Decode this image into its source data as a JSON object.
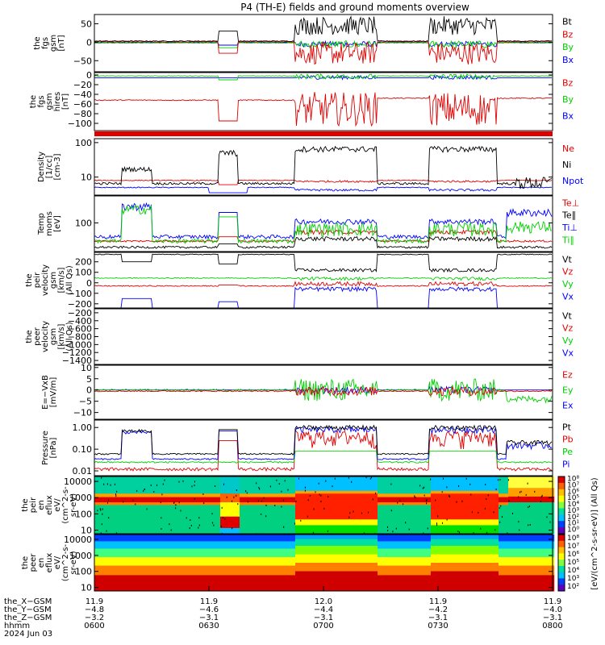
{
  "title": "P4 (TH-E) fields and ground moments overview",
  "colors": {
    "black": "#000000",
    "red": "#e00000",
    "green": "#00d000",
    "blue": "#0000ff"
  },
  "panels": [
    {
      "id": "p1",
      "ylabel": [
        "the",
        "fgs",
        "gsm",
        "[nT]"
      ],
      "ticks": [
        {
          "v": 50,
          "l": "50"
        },
        {
          "v": 0,
          "l": "0"
        },
        {
          "v": -50,
          "l": "−50"
        }
      ],
      "ymin": -80,
      "ymax": 75,
      "log": false,
      "legend": [
        {
          "text": "Bt",
          "color": "black"
        },
        {
          "text": "Bz",
          "color": "red"
        },
        {
          "text": "By",
          "color": "green"
        },
        {
          "text": "Bx",
          "color": "blue"
        }
      ]
    },
    {
      "id": "p2",
      "ylabel": [
        "the",
        "fgs",
        "gsm",
        "hires",
        "[nT]"
      ],
      "ticks": [
        {
          "v": 0,
          "l": "0"
        },
        {
          "v": -20,
          "l": "−20"
        },
        {
          "v": -40,
          "l": "−40"
        },
        {
          "v": -60,
          "l": "−60"
        },
        {
          "v": -80,
          "l": "−80"
        },
        {
          "v": -100,
          "l": "−100"
        }
      ],
      "ymin": -115,
      "ymax": 5,
      "log": false,
      "legend": [
        {
          "text": "Bz",
          "color": "red"
        },
        {
          "text": "By",
          "color": "green"
        },
        {
          "text": "Bx",
          "color": "blue"
        }
      ]
    },
    {
      "id": "p3",
      "ylabel": [
        "Density",
        "[1/cc]",
        "[cm-3]"
      ],
      "ticks": [
        {
          "v": 100,
          "l": "100"
        },
        {
          "v": 10,
          "l": "10"
        }
      ],
      "ymin": 3,
      "ymax": 130,
      "log": true,
      "legend": [
        {
          "text": "Ne",
          "color": "red"
        },
        {
          "text": "Ni",
          "color": "black"
        },
        {
          "text": "Npot",
          "color": "blue"
        }
      ]
    },
    {
      "id": "p4",
      "ylabel": [
        "Temp",
        "moms",
        "[eV]"
      ],
      "ticks": [
        {
          "v": 100,
          "l": "100"
        }
      ],
      "ymin": 15,
      "ymax": 600,
      "log": true,
      "legend": [
        {
          "text": "Te⊥",
          "color": "red"
        },
        {
          "text": "Te∥",
          "color": "black"
        },
        {
          "text": "Ti⊥",
          "color": "blue"
        },
        {
          "text": "Ti∥",
          "color": "green"
        }
      ]
    },
    {
      "id": "p5",
      "ylabel": [
        "the",
        "peir",
        "velocity",
        "gsm",
        "[km/s]",
        "(All Qs)"
      ],
      "ticks": [
        {
          "v": 200,
          "l": "200"
        },
        {
          "v": 100,
          "l": "100"
        },
        {
          "v": 0,
          "l": "0"
        },
        {
          "v": -100,
          "l": "−100"
        },
        {
          "v": -200,
          "l": "−200"
        }
      ],
      "ymin": -240,
      "ymax": 290,
      "log": false,
      "legend": [
        {
          "text": "Vt",
          "color": "black"
        },
        {
          "text": "Vz",
          "color": "red"
        },
        {
          "text": "Vy",
          "color": "green"
        },
        {
          "text": "Vx",
          "color": "blue"
        }
      ]
    },
    {
      "id": "p6",
      "ylabel": [
        "the",
        "peer",
        "velocity",
        "gsm",
        "[km/s]",
        "(All Qs)"
      ],
      "ticks": [
        {
          "v": -200,
          "l": "−200"
        },
        {
          "v": -400,
          "l": "−400"
        },
        {
          "v": -600,
          "l": "−600"
        },
        {
          "v": -800,
          "l": "−800"
        },
        {
          "v": -1000,
          "l": "−1000"
        },
        {
          "v": -1200,
          "l": "−1200"
        },
        {
          "v": -1400,
          "l": "−1400"
        }
      ],
      "ymin": -1500,
      "ymax": -100,
      "log": false,
      "legend": [
        {
          "text": "Vt",
          "color": "black"
        },
        {
          "text": "Vz",
          "color": "red"
        },
        {
          "text": "Vy",
          "color": "green"
        },
        {
          "text": "Vx",
          "color": "blue"
        }
      ]
    },
    {
      "id": "p7",
      "ylabel": [
        "E=−VxB",
        "[mV/m]"
      ],
      "ticks": [
        {
          "v": 10,
          "l": "10"
        },
        {
          "v": 5,
          "l": "5"
        },
        {
          "v": 0,
          "l": "0"
        },
        {
          "v": -5,
          "l": "−5"
        },
        {
          "v": -10,
          "l": "−10"
        }
      ],
      "ymin": -13,
      "ymax": 11,
      "log": false,
      "legend": [
        {
          "text": "Ez",
          "color": "red"
        },
        {
          "text": "Ey",
          "color": "green"
        },
        {
          "text": "Ex",
          "color": "blue"
        }
      ]
    },
    {
      "id": "p8",
      "ylabel": [
        "Pressure",
        "[nPa]"
      ],
      "ticks": [
        {
          "v": 1,
          "l": "1.00"
        },
        {
          "v": 0.1,
          "l": "0.10"
        },
        {
          "v": 0.01,
          "l": "0.01"
        }
      ],
      "ymin": 0.006,
      "ymax": 2.2,
      "log": true,
      "legend": [
        {
          "text": "Pt",
          "color": "black"
        },
        {
          "text": "Pb",
          "color": "red"
        },
        {
          "text": "Pe",
          "color": "green"
        },
        {
          "text": "Pi",
          "color": "blue"
        }
      ]
    },
    {
      "id": "p9",
      "ylabel": [
        "the",
        "peir",
        "en",
        "eflux",
        "eV/",
        "(cm^2-s-",
        "sr-eV)"
      ],
      "ticks": [
        {
          "v": 10000,
          "l": "10000"
        },
        {
          "v": 1000,
          "l": "1000"
        },
        {
          "v": 100,
          "l": "100"
        },
        {
          "v": 10,
          "l": "10"
        }
      ],
      "ymin": 6,
      "ymax": 20000,
      "log": true,
      "legend": []
    },
    {
      "id": "p10",
      "ylabel": [
        "the",
        "peer",
        "en",
        "eflux",
        "eV/",
        "(cm^2-s-",
        "sr-eV)"
      ],
      "ticks": [
        {
          "v": 10000,
          "l": "10000"
        },
        {
          "v": 1000,
          "l": "1000"
        },
        {
          "v": 100,
          "l": "100"
        },
        {
          "v": 10,
          "l": "10"
        }
      ],
      "ymin": 6,
      "ymax": 20000,
      "log": true,
      "legend": []
    }
  ],
  "colorbar": {
    "label": "[eV/(cm^2-s-sr-eV)] (All Qs)",
    "upper": [
      "10⁸",
      "10⁷",
      "10⁶",
      "10⁵",
      "10⁴",
      "10³",
      "10²",
      "10¹",
      "10⁰"
    ],
    "lower": [
      "10⁸",
      "10⁷",
      "10⁶",
      "10⁵",
      "10⁴",
      "10³",
      "10²"
    ]
  },
  "xaxis": {
    "row_labels": [
      "the_X−GSM",
      "the_Y−GSM",
      "the_Z−GSM",
      "hhmm",
      "2024 Jun 03"
    ],
    "columns": [
      {
        "x": "11.9",
        "y": "−4.8",
        "z": "−3.2",
        "t": "0600"
      },
      {
        "x": "11.9",
        "y": "−4.6",
        "z": "−3.1",
        "t": "0630"
      },
      {
        "x": "12.0",
        "y": "−4.4",
        "z": "−3.1",
        "t": "0700"
      },
      {
        "x": "11.9",
        "y": "−4.2",
        "z": "−3.1",
        "t": "0730"
      },
      {
        "x": "11.9",
        "y": "−4.0",
        "z": "−3.1",
        "t": "0800"
      }
    ]
  },
  "chart_data": {
    "type": "line",
    "title": "P4 (TH-E) fields and ground moments overview",
    "xlabel": "hhmm",
    "x_range": [
      "0600",
      "0800"
    ],
    "intervals_hhmm": {
      "quiet_1": [
        "0600",
        "0633"
      ],
      "crossing_1": [
        "0633",
        "0637"
      ],
      "active_1": [
        "0652",
        "0714"
      ],
      "active_2": [
        "0727",
        "0745"
      ]
    },
    "series": [
      {
        "panel": "fgs",
        "name": "Bt",
        "values_typical": {
          "quiet": 3,
          "active": 60
        }
      },
      {
        "panel": "fgs",
        "name": "Bz",
        "values_typical": {
          "quiet": 0,
          "active": -40
        }
      },
      {
        "panel": "fgs_hires",
        "name": "Bz",
        "values_typical": {
          "quiet": -50,
          "active": -95
        }
      },
      {
        "panel": "density",
        "name": "Ni",
        "values_typical": {
          "quiet": 6,
          "active": 70
        }
      },
      {
        "panel": "density",
        "name": "Ne",
        "values_typical": {
          "quiet": 8,
          "active": 7
        }
      },
      {
        "panel": "temp",
        "name": "Ti⊥",
        "values_typical": {
          "quiet": 25,
          "active": 100
        }
      },
      {
        "panel": "velocity",
        "name": "Vt",
        "values_typical": {
          "quiet": 270,
          "active": 120
        }
      },
      {
        "panel": "pressure",
        "name": "Pt",
        "values_typical": {
          "quiet": 0.05,
          "active": 1.0
        }
      }
    ]
  }
}
